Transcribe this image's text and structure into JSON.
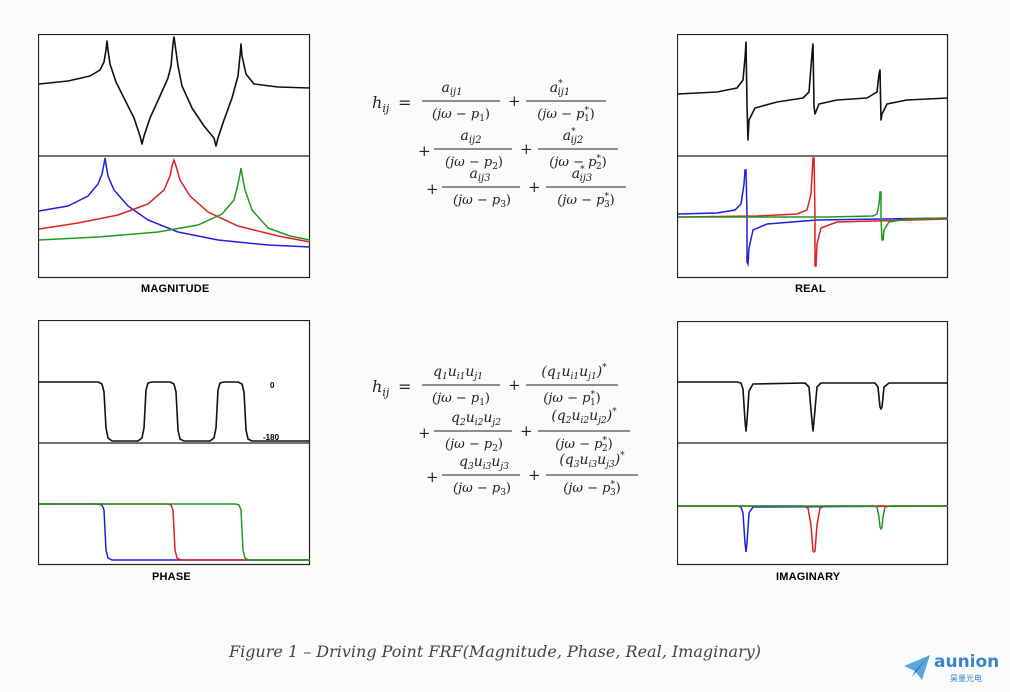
{
  "plots": {
    "magnitude": {
      "label": "MAGNITUDE"
    },
    "phase": {
      "label": "PHASE",
      "ref_zero": "0",
      "ref_minus180": "-180"
    },
    "real": {
      "label": "REAL"
    },
    "imaginary": {
      "label": "IMAGINARY"
    }
  },
  "series_colors": {
    "sum": "#111111",
    "mode1": "#1f1fe0",
    "mode2": "#e01f1f",
    "mode3": "#1f9a1f"
  },
  "equations": {
    "residue_form": "h_ij = a_ij1/(jω − p_1) + a*_ij1/(jω − p*_1) + a_ij2/(jω − p_2) + a*_ij2/(jω − p*_2) + a_ij3/(jω − p_3) + a*_ij3/(jω − p*_3)",
    "modal_form": "h_ij = q_1u_i1u_j1/(jω − p_1) + (q_1u_i1u_j1)*/(jω − p*_1) + q_2u_i2u_j2/(jω − p_2) + (q_2u_i2u_j2)*/(jω − p*_2) + q_3u_i3u_j3/(jω − p_3) + (q_3u_i3u_j3)*/(jω − p*_3)"
  },
  "caption": "Figure 1  –  Driving Point FRF(Magnitude, Phase, Real, Imaginary)",
  "logo": {
    "name": "aunion",
    "subtitle": "昊量光电",
    "icon": "paper-plane-icon"
  }
}
